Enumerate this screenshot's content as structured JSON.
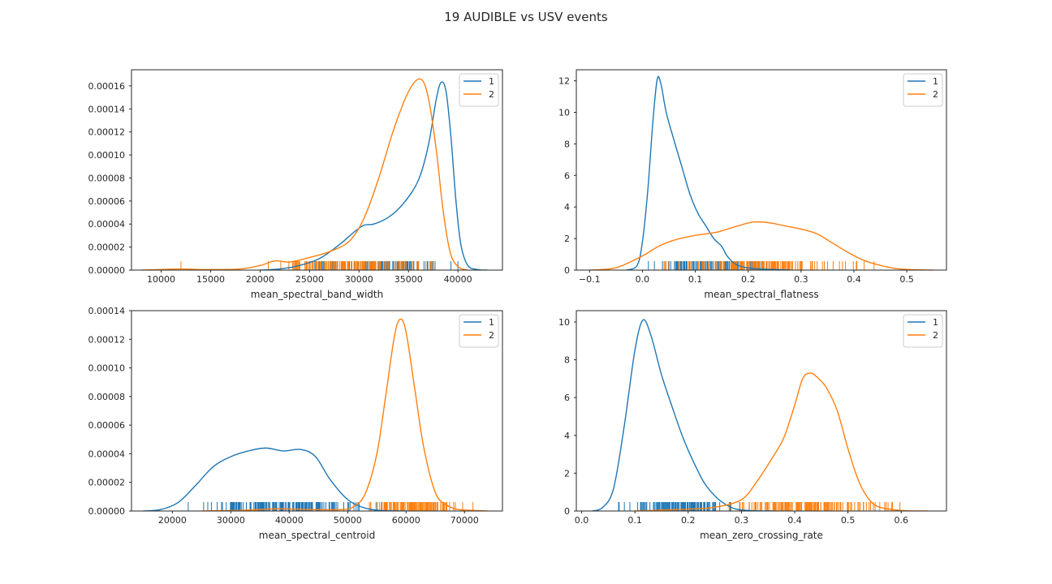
{
  "figure": {
    "title": "19 AUDIBLE vs USV events"
  },
  "colors": {
    "series_1": "#1f77b4",
    "series_2": "#ff7f0e",
    "axes": "#262626"
  },
  "chart_data": [
    {
      "type": "line",
      "id": "band_width",
      "xlabel": "mean_spectral_band_width",
      "ylabel": "",
      "xlim": [
        7000,
        44500
      ],
      "ylim": [
        0,
        0.000174
      ],
      "xticks": [
        10000,
        15000,
        20000,
        25000,
        30000,
        35000,
        40000
      ],
      "yticks": [
        0,
        2e-05,
        4e-05,
        6e-05,
        8e-05,
        0.0001,
        0.00012,
        0.00014,
        0.00016
      ],
      "ytick_labels": [
        "0.00000",
        "0.00002",
        "0.00004",
        "0.00006",
        "0.00008",
        "0.00010",
        "0.00012",
        "0.00014",
        "0.00016"
      ],
      "legend": {
        "location": "upper right",
        "entries": [
          "1",
          "2"
        ]
      },
      "series": [
        {
          "name": "1",
          "color": "#1f77b4",
          "x": [
            20000,
            22000,
            24000,
            26000,
            28000,
            29500,
            30500,
            31500,
            33000,
            34500,
            36000,
            37000,
            37800,
            38300,
            38800,
            39300,
            39800,
            40300,
            41000,
            42000,
            43000
          ],
          "y": [
            0,
            1e-06,
            4e-06,
            1e-05,
            2.2e-05,
            3.3e-05,
            3.9e-05,
            4e-05,
            4.6e-05,
            5.8e-05,
            7.8e-05,
            0.000108,
            0.000148,
            0.000163,
            0.000155,
            0.000115,
            6e-05,
            2.2e-05,
            4e-06,
            5e-07,
            0
          ],
          "rug_range": [
            24000,
            40000
          ],
          "rug_ticks": 120
        },
        {
          "name": "2",
          "color": "#ff7f0e",
          "x": [
            8000,
            10000,
            12000,
            14000,
            16000,
            18000,
            20000,
            21500,
            23000,
            25000,
            27000,
            29000,
            30500,
            32000,
            33500,
            35000,
            36200,
            37000,
            37800,
            38500,
            39200,
            40000,
            41000
          ],
          "y": [
            0,
            5e-07,
            1e-06,
            5e-07,
            5e-07,
            1e-06,
            4e-06,
            8e-06,
            7e-06,
            1.1e-05,
            1.6e-05,
            2.5e-05,
            4.5e-05,
            8e-05,
            0.000122,
            0.000155,
            0.000166,
            0.00015,
            0.000105,
            5.2e-05,
            1.6e-05,
            3e-06,
            0
          ],
          "rug_range": [
            20000,
            39000
          ],
          "rug_ticks": 140,
          "rug_outliers": [
            12000
          ]
        }
      ]
    },
    {
      "type": "line",
      "id": "flatness",
      "xlabel": "mean_spectral_flatness",
      "ylabel": "",
      "xlim": [
        -0.125,
        0.575
      ],
      "ylim": [
        0,
        12.7
      ],
      "xticks": [
        -0.1,
        0.0,
        0.1,
        0.2,
        0.3,
        0.4,
        0.5
      ],
      "xtick_labels": [
        "−0.1",
        "0.0",
        "0.1",
        "0.2",
        "0.3",
        "0.4",
        "0.5"
      ],
      "yticks": [
        0,
        2,
        4,
        6,
        8,
        10,
        12
      ],
      "ytick_labels": [
        "0",
        "2",
        "4",
        "6",
        "8",
        "10",
        "12"
      ],
      "legend": {
        "location": "upper right",
        "entries": [
          "1",
          "2"
        ]
      },
      "series": [
        {
          "name": "1",
          "color": "#1f77b4",
          "x": [
            -0.03,
            -0.01,
            0.0,
            0.01,
            0.02,
            0.028,
            0.035,
            0.045,
            0.06,
            0.075,
            0.09,
            0.105,
            0.12,
            0.135,
            0.15,
            0.16,
            0.175,
            0.19,
            0.21,
            0.24,
            0.28
          ],
          "y": [
            0,
            0.3,
            1.8,
            5.0,
            9.5,
            12.1,
            11.8,
            10.0,
            8.2,
            6.5,
            4.8,
            3.6,
            2.8,
            2.0,
            1.5,
            0.9,
            0.4,
            0.2,
            0.1,
            0.05,
            0
          ],
          "rug_range": [
            0.005,
            0.27
          ],
          "rug_ticks": 120
        },
        {
          "name": "2",
          "color": "#ff7f0e",
          "x": [
            -0.1,
            -0.05,
            0.0,
            0.03,
            0.06,
            0.1,
            0.14,
            0.18,
            0.21,
            0.24,
            0.27,
            0.3,
            0.33,
            0.36,
            0.39,
            0.42,
            0.45,
            0.48,
            0.51,
            0.55
          ],
          "y": [
            0,
            0.15,
            0.9,
            1.5,
            1.9,
            2.2,
            2.4,
            2.8,
            3.05,
            3.0,
            2.8,
            2.6,
            2.3,
            1.7,
            1.1,
            0.6,
            0.3,
            0.1,
            0.03,
            0
          ],
          "rug_range": [
            0.0,
            0.45
          ],
          "rug_ticks": 150
        }
      ]
    },
    {
      "type": "line",
      "id": "centroid",
      "xlabel": "mean_spectral_centroid",
      "ylabel": "",
      "xlim": [
        13000,
        76500
      ],
      "ylim": [
        0,
        0.00014
      ],
      "xticks": [
        20000,
        30000,
        40000,
        50000,
        60000,
        70000
      ],
      "yticks": [
        0,
        2e-05,
        4e-05,
        6e-05,
        8e-05,
        0.0001,
        0.00012,
        0.00014
      ],
      "ytick_labels": [
        "0.00000",
        "0.00002",
        "0.00004",
        "0.00006",
        "0.00008",
        "0.00010",
        "0.00012",
        "0.00014"
      ],
      "legend": {
        "location": "upper right",
        "entries": [
          "1",
          "2"
        ]
      },
      "series": [
        {
          "name": "1",
          "color": "#1f77b4",
          "x": [
            15000,
            18000,
            21000,
            24000,
            27000,
            30000,
            33000,
            36000,
            39000,
            42000,
            44500,
            47000,
            50000,
            53000,
            56000,
            60000
          ],
          "y": [
            0,
            1e-06,
            6e-06,
            1.8e-05,
            3.1e-05,
            3.8e-05,
            4.2e-05,
            4.4e-05,
            4.2e-05,
            4.3e-05,
            3.8e-05,
            2.2e-05,
            8e-06,
            2e-06,
            3e-07,
            0
          ],
          "rug_range": [
            21000,
            58000
          ],
          "rug_ticks": 160
        },
        {
          "name": "2",
          "color": "#ff7f0e",
          "x": [
            25000,
            32000,
            38000,
            44000,
            49000,
            51000,
            53000,
            55000,
            56500,
            58000,
            59000,
            60000,
            61500,
            63000,
            65000,
            67000,
            69000,
            71000,
            74000
          ],
          "y": [
            0,
            5e-07,
            1.5e-06,
            1e-06,
            1e-06,
            3e-06,
            1.2e-05,
            4e-05,
            8e-05,
            0.000122,
            0.000134,
            0.000125,
            8.5e-05,
            4.5e-05,
            1.3e-05,
            4e-06,
            1e-06,
            5e-07,
            0
          ],
          "rug_range": [
            51000,
            72000
          ],
          "rug_ticks": 130
        }
      ]
    },
    {
      "type": "line",
      "id": "zero_crossing",
      "xlabel": "mean_zero_crossing_rate",
      "ylabel": "",
      "xlim": [
        -0.01,
        0.685
      ],
      "ylim": [
        0,
        10.6
      ],
      "xticks": [
        0.0,
        0.1,
        0.2,
        0.3,
        0.4,
        0.5,
        0.6
      ],
      "xtick_labels": [
        "0.0",
        "0.1",
        "0.2",
        "0.3",
        "0.4",
        "0.5",
        "0.6"
      ],
      "yticks": [
        0,
        2,
        4,
        6,
        8,
        10
      ],
      "ytick_labels": [
        "0",
        "2",
        "4",
        "6",
        "8",
        "10"
      ],
      "legend": {
        "location": "upper right",
        "entries": [
          "1",
          "2"
        ]
      },
      "series": [
        {
          "name": "1",
          "color": "#1f77b4",
          "x": [
            0.02,
            0.04,
            0.06,
            0.08,
            0.1,
            0.115,
            0.13,
            0.15,
            0.17,
            0.19,
            0.21,
            0.23,
            0.25,
            0.27,
            0.29,
            0.32,
            0.36
          ],
          "y": [
            0,
            0.2,
            1.2,
            4.5,
            8.5,
            10.1,
            9.3,
            7.2,
            5.5,
            3.9,
            2.6,
            1.5,
            0.8,
            0.35,
            0.1,
            0.02,
            0
          ],
          "rug_range": [
            0.06,
            0.3
          ],
          "rug_ticks": 130
        },
        {
          "name": "2",
          "color": "#ff7f0e",
          "x": [
            0.1,
            0.15,
            0.2,
            0.25,
            0.3,
            0.33,
            0.36,
            0.38,
            0.4,
            0.415,
            0.43,
            0.445,
            0.46,
            0.48,
            0.5,
            0.52,
            0.54,
            0.56,
            0.6,
            0.65
          ],
          "y": [
            0,
            0.05,
            0.1,
            0.2,
            0.6,
            1.6,
            2.9,
            3.9,
            5.6,
            7.0,
            7.3,
            7.0,
            6.5,
            5.3,
            3.3,
            1.6,
            0.6,
            0.2,
            0.03,
            0
          ],
          "rug_range": [
            0.22,
            0.6
          ],
          "rug_ticks": 150
        }
      ]
    }
  ]
}
